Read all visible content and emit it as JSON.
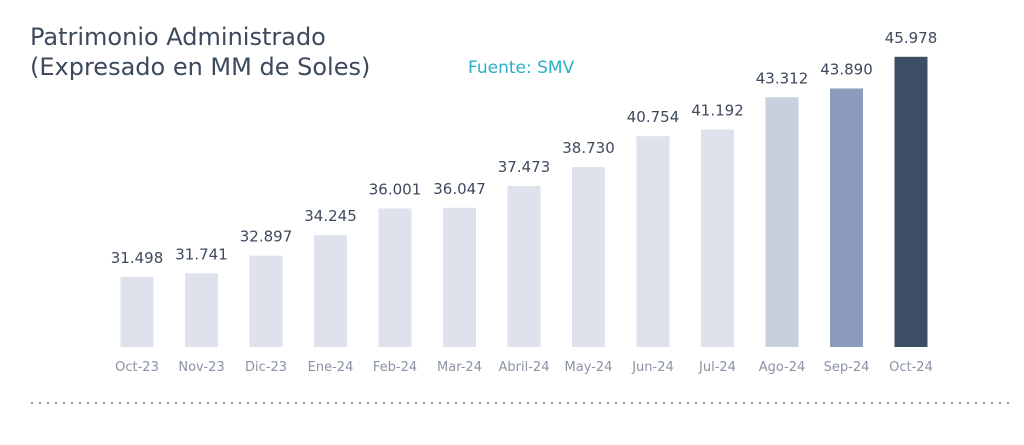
{
  "chart_data": {
    "type": "bar",
    "title": "Patrimonio Administrado",
    "subtitle": "(Expresado en MM de Soles)",
    "source": "Fuente: SMV",
    "categories": [
      "Oct-23",
      "Nov-23",
      "Dic-23",
      "Ene-24",
      "Feb-24",
      "Mar-24",
      "Abril-24",
      "May-24",
      "Jun-24",
      "Jul-24",
      "Ago-24",
      "Sep-24",
      "Oct-24"
    ],
    "values": [
      31498,
      31741,
      32897,
      34245,
      36001,
      36047,
      37473,
      38730,
      40754,
      41192,
      43312,
      43890,
      45978
    ],
    "value_labels": [
      "31.498",
      "31.741",
      "32.897",
      "34.245",
      "36.001",
      "36.047",
      "37.473",
      "38.730",
      "40.754",
      "41.192",
      "43.312",
      "43.890",
      "45.978"
    ],
    "bar_colors": [
      "#dde2ec",
      "#dde2ec",
      "#dde2ec",
      "#dde2ec",
      "#dde2ec",
      "#dde2ec",
      "#dde2ec",
      "#dde2ec",
      "#dde2ec",
      "#dde2ec",
      "#c8cfdd",
      "#8a9bbb",
      "#3b4e66"
    ],
    "grid": false,
    "legend": "none"
  }
}
